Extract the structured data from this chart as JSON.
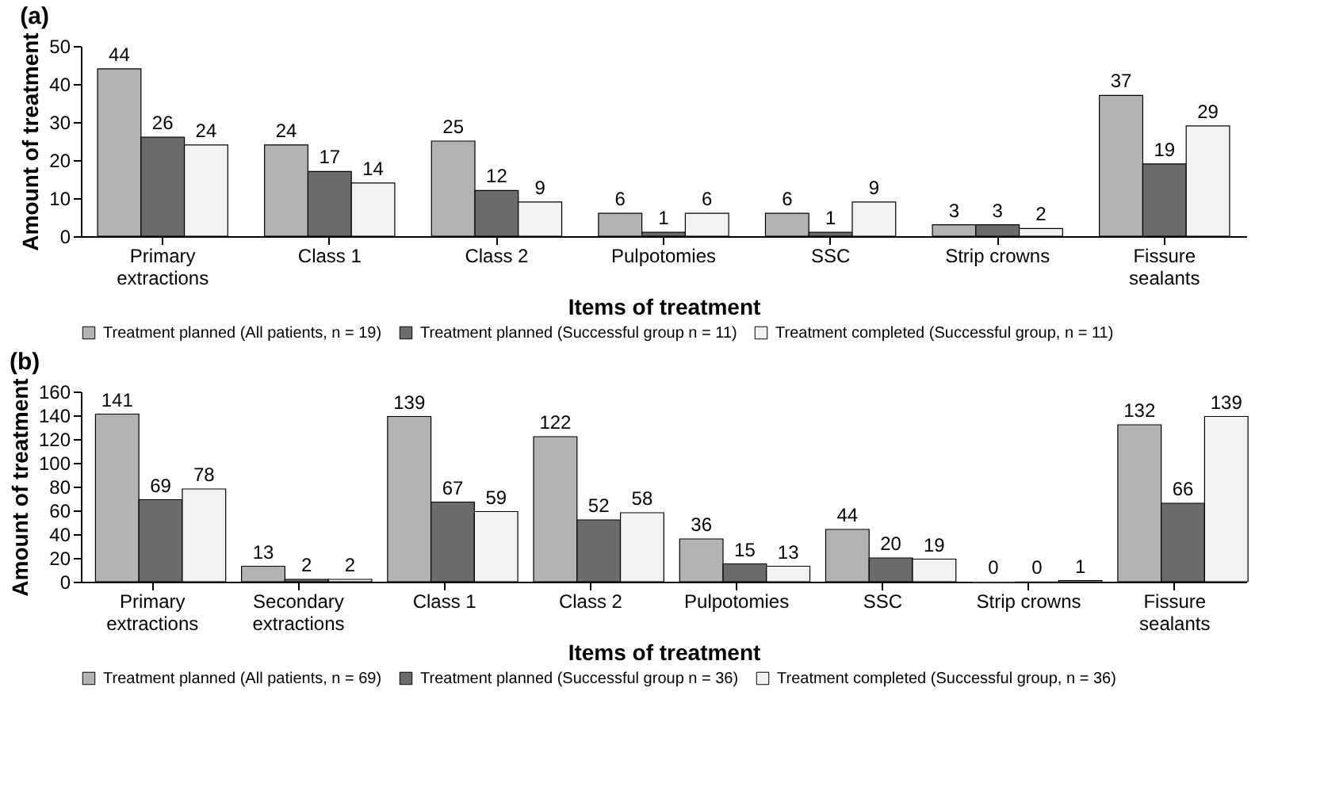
{
  "chart_data": [
    {
      "type": "bar",
      "title": "(a)",
      "xlabel": "Items of treatment",
      "ylabel": "Amount of treatment",
      "categories": [
        "Primary extractions",
        "Class 1",
        "Class 2",
        "Pulpotomies",
        "SSC",
        "Strip crowns",
        "Fissure sealants"
      ],
      "ylim": [
        0,
        50
      ],
      "yticks": [
        0,
        10,
        20,
        30,
        40,
        50
      ],
      "data_labels": true,
      "legend": "bottom",
      "grid": false,
      "series": [
        {
          "name": "Treatment planned (All patients, n = 19)",
          "color": "#b3b3b3",
          "values": [
            44,
            24,
            25,
            6,
            6,
            3,
            37
          ]
        },
        {
          "name": "Treatment planned (Successful group n = 11)",
          "color": "#6b6b6b",
          "values": [
            26,
            17,
            12,
            1,
            1,
            3,
            19
          ]
        },
        {
          "name": "Treatment completed (Successful group, n = 11)",
          "color": "#f2f2f2",
          "values": [
            24,
            14,
            9,
            6,
            9,
            2,
            29
          ]
        }
      ]
    },
    {
      "type": "bar",
      "title": "(b)",
      "xlabel": "Items of treatment",
      "ylabel": "Amount of treatment",
      "categories": [
        "Primary extractions",
        "Secondary extractions",
        "Class 1",
        "Class 2",
        "Pulpotomies",
        "SSC",
        "Strip crowns",
        "Fissure sealants"
      ],
      "ylim": [
        0,
        160
      ],
      "yticks": [
        0,
        20,
        40,
        60,
        80,
        100,
        120,
        140,
        160
      ],
      "data_labels": true,
      "legend": "bottom",
      "grid": false,
      "series": [
        {
          "name": "Treatment planned (All patients, n = 69)",
          "color": "#b3b3b3",
          "values": [
            141,
            13,
            139,
            122,
            36,
            44,
            0,
            132
          ]
        },
        {
          "name": "Treatment planned (Successful group n = 36)",
          "color": "#6b6b6b",
          "values": [
            69,
            2,
            67,
            52,
            15,
            20,
            0,
            66
          ]
        },
        {
          "name": "Treatment completed (Successful group, n = 36)",
          "color": "#f2f2f2",
          "values": [
            78,
            2,
            59,
            58,
            13,
            19,
            1,
            139
          ]
        }
      ]
    }
  ]
}
